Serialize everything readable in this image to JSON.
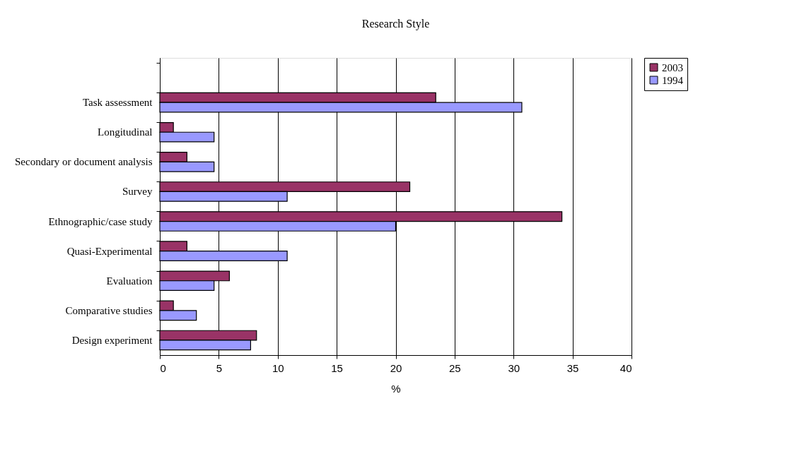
{
  "chart_data": {
    "type": "bar",
    "orientation": "horizontal",
    "title": "Research Style",
    "xlabel": "%",
    "categories": [
      null,
      "Task assessment",
      "Longitudinal",
      "Secondary or document analysis",
      "Survey",
      "Ethnographic/case study",
      "Quasi-Experimental",
      "Evaluation",
      "Comparative studies",
      "Design experiment"
    ],
    "series": [
      {
        "name": "2003",
        "color": "#993366",
        "values": [
          null,
          23.4,
          1.15,
          2.3,
          21.2,
          34.1,
          2.3,
          5.9,
          1.15,
          8.2
        ]
      },
      {
        "name": "1994",
        "color": "#9999ff",
        "values": [
          null,
          30.7,
          4.6,
          4.6,
          10.8,
          20,
          10.8,
          4.6,
          3.1,
          7.7
        ]
      }
    ],
    "xlim": [
      0,
      40
    ],
    "xticks": [
      0,
      5,
      10,
      15,
      20,
      25,
      30,
      35,
      40
    ],
    "grid": "x",
    "legend": "right"
  }
}
